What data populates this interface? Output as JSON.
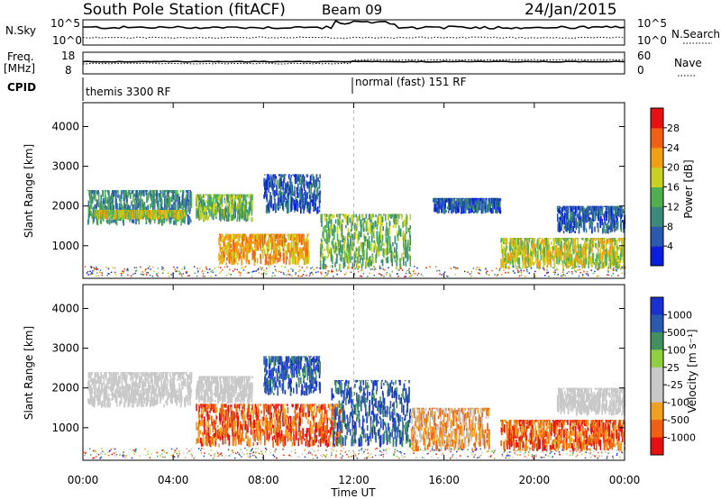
{
  "header": {
    "station": "South Pole Station (fitACF)",
    "beam": "Beam 09",
    "date": "24/Jan/2015"
  },
  "strip_nsky": {
    "left_label": "N.Sky",
    "right_label": "N.Search",
    "left_ticks": [
      "10^5",
      "10^0"
    ],
    "right_ticks": [
      "10^5",
      "10^0"
    ]
  },
  "strip_freq": {
    "left_label_1": "Freq.",
    "left_label_2": "[MHz]",
    "right_label": "Nave",
    "left_ticks": [
      "18",
      "8"
    ],
    "right_ticks": [
      "60",
      "0"
    ]
  },
  "cpid": {
    "label": "CPID",
    "modes": [
      {
        "name": "themis 3300 RF",
        "start_hour": 0
      },
      {
        "name": "normal (fast) 151 RF",
        "start_hour": 12
      }
    ]
  },
  "colors": {
    "power": [
      "#0a1ee0",
      "#2a5ab0",
      "#3c8a7a",
      "#50b050",
      "#c8d020",
      "#f0a010",
      "#f06010",
      "#e81010"
    ],
    "velocity": [
      "#e81010",
      "#f06010",
      "#f0a020",
      "#c8c8c8",
      "#c8c8c8",
      "#90d040",
      "#409060",
      "#2a5ab0",
      "#1a30d0"
    ]
  },
  "chart_data": [
    {
      "type": "heatmap",
      "panel": "power",
      "xlabel": "",
      "ylabel": "Slant Range [km]",
      "x_range_hours": [
        0,
        24
      ],
      "ylim": [
        180,
        4600
      ],
      "yticks": [
        "1000",
        "2000",
        "3000",
        "4000"
      ],
      "colorbar": {
        "label": "Power [dB]",
        "ticks": [
          "4",
          "8",
          "12",
          "16",
          "20",
          "24",
          "28"
        ],
        "range": [
          0,
          30
        ]
      },
      "bands": [
        {
          "start_hour": 0.2,
          "end_hour": 4.8,
          "range_low_km": 1500,
          "range_high_km": 2400,
          "power_db": 10
        },
        {
          "start_hour": 0.5,
          "end_hour": 4.5,
          "range_low_km": 1650,
          "range_high_km": 1900,
          "power_db": 18
        },
        {
          "start_hour": 5.0,
          "end_hour": 7.5,
          "range_low_km": 1600,
          "range_high_km": 2300,
          "power_db": 14
        },
        {
          "start_hour": 6.0,
          "end_hour": 10.0,
          "range_low_km": 500,
          "range_high_km": 1300,
          "power_db": 22
        },
        {
          "start_hour": 8.0,
          "end_hour": 10.5,
          "range_low_km": 1800,
          "range_high_km": 2800,
          "power_db": 8
        },
        {
          "start_hour": 10.5,
          "end_hour": 14.5,
          "range_low_km": 400,
          "range_high_km": 1800,
          "power_db": 14
        },
        {
          "start_hour": 15.5,
          "end_hour": 18.5,
          "range_low_km": 1800,
          "range_high_km": 2200,
          "power_db": 6
        },
        {
          "start_hour": 18.5,
          "end_hour": 24.0,
          "range_low_km": 400,
          "range_high_km": 1200,
          "power_db": 20
        },
        {
          "start_hour": 21.0,
          "end_hour": 24.0,
          "range_low_km": 1300,
          "range_high_km": 2000,
          "power_db": 6
        }
      ]
    },
    {
      "type": "heatmap",
      "panel": "velocity",
      "xlabel": "Time UT",
      "ylabel": "Slant Range [km]",
      "x_range_hours": [
        0,
        24
      ],
      "xticks": [
        "00:00",
        "04:00",
        "08:00",
        "12:00",
        "16:00",
        "20:00",
        "00:00"
      ],
      "ylim": [
        180,
        4600
      ],
      "yticks": [
        "1000",
        "2000",
        "3000",
        "4000"
      ],
      "colorbar": {
        "label": "Velocity [m s⁻¹]",
        "ticks": [
          "1000",
          "500",
          "100",
          "25",
          "-25",
          "-100",
          "-500",
          "-1000"
        ]
      },
      "bands": [
        {
          "start_hour": 0.2,
          "end_hour": 4.8,
          "range_low_km": 1500,
          "range_high_km": 2400,
          "velocity_ms": 0
        },
        {
          "start_hour": 5.0,
          "end_hour": 7.5,
          "range_low_km": 1600,
          "range_high_km": 2300,
          "velocity_ms": 0
        },
        {
          "start_hour": 5.0,
          "end_hour": 11.5,
          "range_low_km": 500,
          "range_high_km": 1600,
          "velocity_ms": -300
        },
        {
          "start_hour": 8.0,
          "end_hour": 10.5,
          "range_low_km": 1800,
          "range_high_km": 2800,
          "velocity_ms": 300
        },
        {
          "start_hour": 11.0,
          "end_hour": 14.5,
          "range_low_km": 500,
          "range_high_km": 2200,
          "velocity_ms": 400
        },
        {
          "start_hour": 14.5,
          "end_hour": 18.0,
          "range_low_km": 400,
          "range_high_km": 1500,
          "velocity_ms": -200
        },
        {
          "start_hour": 18.5,
          "end_hour": 24.0,
          "range_low_km": 400,
          "range_high_km": 1200,
          "velocity_ms": -300
        },
        {
          "start_hour": 21.0,
          "end_hour": 24.0,
          "range_low_km": 1300,
          "range_high_km": 2000,
          "velocity_ms": 0
        }
      ]
    }
  ]
}
